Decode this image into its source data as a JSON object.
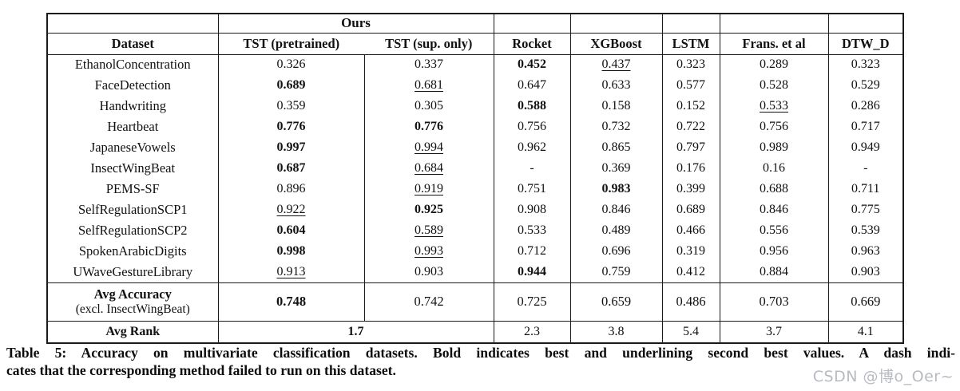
{
  "table": {
    "group_header": {
      "ours": "Ours"
    },
    "columns": [
      "Dataset",
      "TST (pretrained)",
      "TST (sup. only)",
      "Rocket",
      "XGBoost",
      "LSTM",
      "Frans. et al",
      "DTW_D"
    ],
    "rows": [
      {
        "dataset": "EthanolConcentration",
        "values": [
          {
            "t": "0.326",
            "s": ""
          },
          {
            "t": "0.337",
            "s": ""
          },
          {
            "t": "0.452",
            "s": "b"
          },
          {
            "t": "0.437",
            "s": "u"
          },
          {
            "t": "0.323",
            "s": ""
          },
          {
            "t": "0.289",
            "s": ""
          },
          {
            "t": "0.323",
            "s": ""
          }
        ]
      },
      {
        "dataset": "FaceDetection",
        "values": [
          {
            "t": "0.689",
            "s": "b"
          },
          {
            "t": "0.681",
            "s": "u"
          },
          {
            "t": "0.647",
            "s": ""
          },
          {
            "t": "0.633",
            "s": ""
          },
          {
            "t": "0.577",
            "s": ""
          },
          {
            "t": "0.528",
            "s": ""
          },
          {
            "t": "0.529",
            "s": ""
          }
        ]
      },
      {
        "dataset": "Handwriting",
        "values": [
          {
            "t": "0.359",
            "s": ""
          },
          {
            "t": "0.305",
            "s": ""
          },
          {
            "t": "0.588",
            "s": "b"
          },
          {
            "t": "0.158",
            "s": ""
          },
          {
            "t": "0.152",
            "s": ""
          },
          {
            "t": "0.533",
            "s": "u"
          },
          {
            "t": "0.286",
            "s": ""
          }
        ]
      },
      {
        "dataset": "Heartbeat",
        "values": [
          {
            "t": "0.776",
            "s": "b"
          },
          {
            "t": "0.776",
            "s": "b"
          },
          {
            "t": "0.756",
            "s": ""
          },
          {
            "t": "0.732",
            "s": ""
          },
          {
            "t": "0.722",
            "s": ""
          },
          {
            "t": "0.756",
            "s": ""
          },
          {
            "t": "0.717",
            "s": ""
          }
        ]
      },
      {
        "dataset": "JapaneseVowels",
        "values": [
          {
            "t": "0.997",
            "s": "b"
          },
          {
            "t": "0.994",
            "s": "u"
          },
          {
            "t": "0.962",
            "s": ""
          },
          {
            "t": "0.865",
            "s": ""
          },
          {
            "t": "0.797",
            "s": ""
          },
          {
            "t": "0.989",
            "s": ""
          },
          {
            "t": "0.949",
            "s": ""
          }
        ]
      },
      {
        "dataset": "InsectWingBeat",
        "values": [
          {
            "t": "0.687",
            "s": "b"
          },
          {
            "t": "0.684",
            "s": "u"
          },
          {
            "t": "-",
            "s": ""
          },
          {
            "t": "0.369",
            "s": ""
          },
          {
            "t": "0.176",
            "s": ""
          },
          {
            "t": "0.16",
            "s": ""
          },
          {
            "t": "-",
            "s": ""
          }
        ]
      },
      {
        "dataset": "PEMS-SF",
        "values": [
          {
            "t": "0.896",
            "s": ""
          },
          {
            "t": "0.919",
            "s": "u"
          },
          {
            "t": "0.751",
            "s": ""
          },
          {
            "t": "0.983",
            "s": "b"
          },
          {
            "t": "0.399",
            "s": ""
          },
          {
            "t": "0.688",
            "s": ""
          },
          {
            "t": "0.711",
            "s": ""
          }
        ]
      },
      {
        "dataset": "SelfRegulationSCP1",
        "values": [
          {
            "t": "0.922",
            "s": "u"
          },
          {
            "t": "0.925",
            "s": "b"
          },
          {
            "t": "0.908",
            "s": ""
          },
          {
            "t": "0.846",
            "s": ""
          },
          {
            "t": "0.689",
            "s": ""
          },
          {
            "t": "0.846",
            "s": ""
          },
          {
            "t": "0.775",
            "s": ""
          }
        ]
      },
      {
        "dataset": "SelfRegulationSCP2",
        "values": [
          {
            "t": "0.604",
            "s": "b"
          },
          {
            "t": "0.589",
            "s": "u"
          },
          {
            "t": "0.533",
            "s": ""
          },
          {
            "t": "0.489",
            "s": ""
          },
          {
            "t": "0.466",
            "s": ""
          },
          {
            "t": "0.556",
            "s": ""
          },
          {
            "t": "0.539",
            "s": ""
          }
        ]
      },
      {
        "dataset": "SpokenArabicDigits",
        "values": [
          {
            "t": "0.998",
            "s": "b"
          },
          {
            "t": "0.993",
            "s": "u"
          },
          {
            "t": "0.712",
            "s": ""
          },
          {
            "t": "0.696",
            "s": ""
          },
          {
            "t": "0.319",
            "s": ""
          },
          {
            "t": "0.956",
            "s": ""
          },
          {
            "t": "0.963",
            "s": ""
          }
        ]
      },
      {
        "dataset": "UWaveGestureLibrary",
        "values": [
          {
            "t": "0.913",
            "s": "u"
          },
          {
            "t": "0.903",
            "s": ""
          },
          {
            "t": "0.944",
            "s": "b"
          },
          {
            "t": "0.759",
            "s": ""
          },
          {
            "t": "0.412",
            "s": ""
          },
          {
            "t": "0.884",
            "s": ""
          },
          {
            "t": "0.903",
            "s": ""
          }
        ]
      }
    ],
    "avg_accuracy": {
      "label_line1": "Avg Accuracy",
      "label_line2": "(excl. InsectWingBeat)",
      "values": [
        {
          "t": "0.748",
          "s": "b"
        },
        {
          "t": "0.742",
          "s": ""
        },
        {
          "t": "0.725",
          "s": ""
        },
        {
          "t": "0.659",
          "s": ""
        },
        {
          "t": "0.486",
          "s": ""
        },
        {
          "t": "0.703",
          "s": ""
        },
        {
          "t": "0.669",
          "s": ""
        }
      ]
    },
    "avg_rank": {
      "label": "Avg Rank",
      "ours_span": {
        "t": "1.7",
        "s": "b"
      },
      "values": [
        {
          "t": "2.3",
          "s": ""
        },
        {
          "t": "3.8",
          "s": ""
        },
        {
          "t": "5.4",
          "s": ""
        },
        {
          "t": "3.7",
          "s": ""
        },
        {
          "t": "4.1",
          "s": ""
        }
      ]
    }
  },
  "caption": {
    "line1": "Table 5: Accuracy on multivariate classification datasets. Bold indicates best and underlining second best values. A dash indi-",
    "line2": "cates that the corresponding method failed to run on this dataset."
  },
  "watermark": {
    "text": "CSDN @博o_Oer~"
  }
}
